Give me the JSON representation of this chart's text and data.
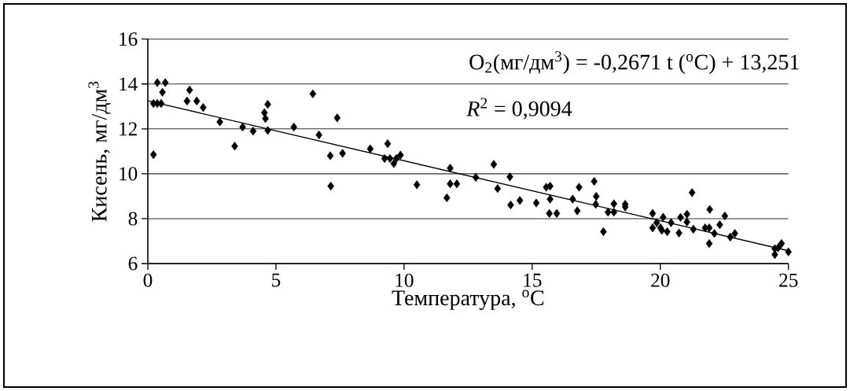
{
  "chart_data": {
    "type": "scatter",
    "xlabel": "Температура, $^{o}$С",
    "ylabel": "Кисень, мг/дм$^{3}$",
    "annotations": [
      "O$_{2}$(мг/дм$^{3}$) = -0,2671 t ($^{o}$C) + 13,251",
      "*R*$^{2}$ = 0,9094"
    ],
    "xlim": [
      0,
      25
    ],
    "ylim": [
      6,
      16
    ],
    "xticks": [
      0,
      5,
      10,
      15,
      20,
      25
    ],
    "yticks": [
      6,
      8,
      10,
      12,
      14,
      16
    ],
    "grid": "y",
    "series": [
      {
        "type": "scatter",
        "marker": "diamond",
        "color": "#000000",
        "x": [
          0.22,
          0.22,
          0.37,
          0.52,
          0.37,
          0.68,
          0.57,
          1.63,
          1.53,
          1.91,
          2.16,
          2.81,
          3.39,
          3.7,
          4.11,
          4.68,
          4.55,
          4.59,
          4.68,
          5.7,
          6.44,
          6.68,
          7.39,
          7.12,
          7.6,
          7.14,
          8.68,
          9.36,
          9.24,
          9.45,
          9.6,
          9.7,
          9.86,
          10.5,
          11.8,
          11.8,
          12.06,
          11.67,
          12.8,
          13.5,
          13.65,
          14.13,
          14.16,
          14.52,
          15.16,
          15.55,
          15.7,
          15.7,
          15.67,
          15.96,
          16.58,
          16.76,
          16.83,
          17.42,
          17.5,
          17.48,
          17.78,
          17.96,
          18.19,
          18.19,
          18.63,
          18.63,
          19.7,
          19.7,
          19.86,
          20.01,
          20.11,
          20.06,
          20.27,
          20.42,
          20.73,
          20.79,
          21.04,
          21.04,
          21.24,
          21.29,
          21.75,
          21.91,
          21.93,
          21.91,
          22.11,
          22.32,
          22.52,
          22.73,
          22.91,
          24.47,
          24.73,
          24.47,
          25.0,
          24.6
        ],
        "values": [
          10.85,
          13.13,
          13.13,
          13.13,
          14.06,
          14.06,
          13.63,
          13.73,
          13.24,
          13.24,
          12.95,
          12.31,
          11.23,
          12.08,
          11.9,
          13.09,
          12.72,
          12.46,
          11.93,
          12.08,
          13.56,
          11.73,
          12.49,
          10.8,
          10.91,
          9.45,
          11.11,
          11.34,
          10.68,
          10.68,
          10.45,
          10.68,
          10.83,
          9.51,
          10.25,
          9.55,
          9.55,
          8.93,
          9.84,
          10.42,
          9.34,
          9.86,
          8.61,
          8.81,
          8.7,
          9.4,
          9.45,
          8.87,
          8.23,
          8.23,
          8.87,
          8.35,
          9.4,
          9.66,
          8.99,
          8.64,
          7.42,
          8.29,
          8.66,
          8.29,
          8.64,
          8.52,
          8.23,
          7.59,
          7.82,
          7.59,
          8.06,
          7.48,
          7.42,
          7.82,
          7.36,
          8.06,
          8.2,
          7.85,
          9.16,
          7.53,
          7.59,
          7.59,
          8.41,
          6.89,
          7.34,
          7.73,
          8.12,
          7.18,
          7.34,
          6.66,
          6.89,
          6.4,
          6.52,
          6.7
        ]
      },
      {
        "type": "line",
        "color": "#000000",
        "x": [
          0,
          25
        ],
        "values": [
          13.25,
          6.57
        ]
      }
    ]
  }
}
